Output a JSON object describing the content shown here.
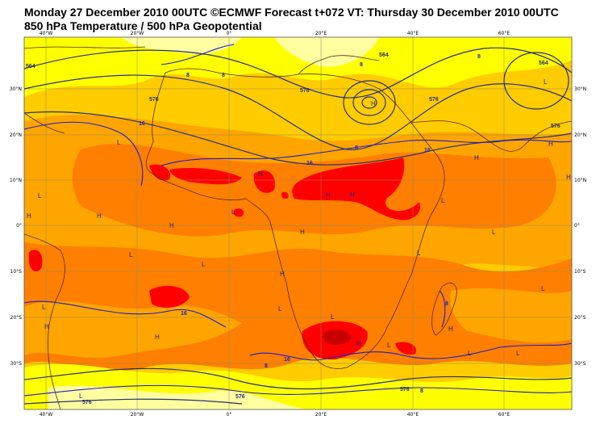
{
  "title_line1": "Monday 27 December 2010 00UTC ©ECMWF Forecast t+072 VT: Thursday 30 December 2010 00UTC",
  "title_line2": "850 hPa Temperature / 500 hPa Geopotential",
  "lon_labels": [
    "40°W",
    "20°W",
    "0°",
    "20°E",
    "40°E",
    "60°E"
  ],
  "lat_labels": [
    "30°N",
    "20°N",
    "10°N",
    "0°",
    "10°S",
    "20°S",
    "30°S"
  ],
  "pressure_marks": [
    "L",
    "L",
    "H",
    "L",
    "H",
    "L",
    "H",
    "H",
    "H",
    "L",
    "H",
    "L",
    "H",
    "H",
    "L",
    "L",
    "L",
    "L",
    "H",
    "H",
    "H",
    "H",
    "H",
    "H",
    "L",
    "H",
    "L",
    "L",
    "L",
    "L",
    "H",
    "L",
    "L"
  ],
  "contour_labels": [
    "564",
    "8",
    "8",
    "576",
    "16",
    "576",
    "564",
    "8",
    "576",
    "8",
    "16",
    "564",
    "576",
    "16",
    "8",
    "16",
    "8",
    "16",
    "576",
    "576",
    "8",
    "8",
    "576"
  ],
  "colors": {
    "pale_yellow": "#ffffa0",
    "yellow": "#ffff00",
    "light_orange": "#ffcc00",
    "orange": "#ffa500",
    "dark_orange": "#ff7f00",
    "red": "#ff0000",
    "dark_red": "#c80000",
    "contour_temp": "#1e1ec8",
    "contour_geo": "#283070",
    "coast": "#5a2a10",
    "grid": "#8a8a60"
  }
}
